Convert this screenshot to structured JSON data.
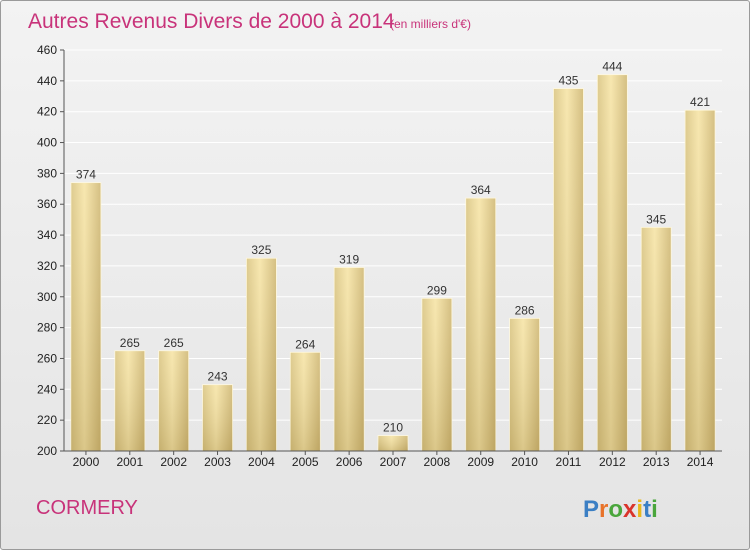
{
  "title": "Autres Revenus Divers de 2000 à 2014",
  "subtitle": "(en milliers d'€)",
  "city": "CORMERY",
  "logo": "Proxiti",
  "colors": {
    "title": "#c8337a",
    "bar_light": "#f7e7a8",
    "bar_dark": "#c9b36d",
    "background": "#ececec"
  },
  "chart_data": {
    "type": "bar",
    "title": "Autres Revenus Divers de 2000 à 2014",
    "subtitle": "(en milliers d'€)",
    "xlabel": "",
    "ylabel": "",
    "categories": [
      "2000",
      "2001",
      "2002",
      "2003",
      "2004",
      "2005",
      "2006",
      "2007",
      "2008",
      "2009",
      "2010",
      "2011",
      "2012",
      "2013",
      "2014"
    ],
    "values": [
      374,
      265,
      265,
      243,
      325,
      264,
      319,
      210,
      299,
      364,
      286,
      435,
      444,
      345,
      421
    ],
    "ylim": [
      200,
      460
    ],
    "yticks": [
      200,
      220,
      240,
      260,
      280,
      300,
      320,
      340,
      360,
      380,
      400,
      420,
      440,
      460
    ],
    "grid": true,
    "data_labels": true
  }
}
